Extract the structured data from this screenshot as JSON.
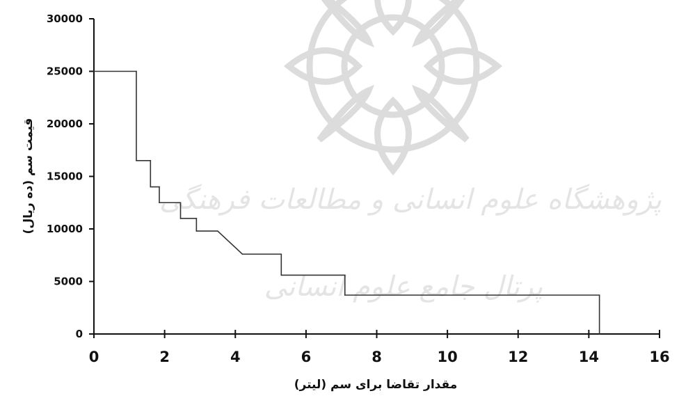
{
  "chart_data": {
    "type": "line",
    "subtype": "step",
    "title": "",
    "xlabel": "مقدار تقاضا برای سم (لیتر)",
    "ylabel": "قیمت سم (ده ریال)",
    "xlim": [
      0,
      16
    ],
    "ylim": [
      0,
      30000
    ],
    "x_ticks": [
      0,
      2,
      4,
      6,
      8,
      10,
      12,
      14,
      16
    ],
    "y_ticks": [
      0,
      5000,
      10000,
      15000,
      20000,
      25000,
      30000
    ],
    "x_tick_labels": [
      "0",
      "2",
      "4",
      "6",
      "8",
      "10",
      "12",
      "14",
      "16"
    ],
    "y_tick_labels": [
      "0",
      "5000",
      "10000",
      "15000",
      "20000",
      "25000",
      "30000"
    ],
    "grid": false,
    "legend": "none",
    "series": [
      {
        "x": [
          0,
          1.2,
          1.2,
          1.6,
          1.6,
          1.85,
          1.85,
          2.45,
          2.45,
          2.9,
          2.9,
          3.5,
          4.2,
          5.3,
          5.3,
          7.1,
          7.1,
          14.3,
          14.3
        ],
        "y": [
          25000,
          25000,
          16500,
          16500,
          14000,
          14000,
          12500,
          12500,
          11000,
          11000,
          9800,
          9800,
          7600,
          7600,
          5600,
          5600,
          3700,
          3700,
          0
        ]
      }
    ],
    "colors": {
      "line": "#333333",
      "axis": "#111111",
      "watermark": "#b3b3b3"
    }
  },
  "watermark": {
    "line1": "پژوهشگاه علوم انسانی و مطالعات فرهنگی",
    "line2": "پرتال جامع علوم انسانی"
  }
}
